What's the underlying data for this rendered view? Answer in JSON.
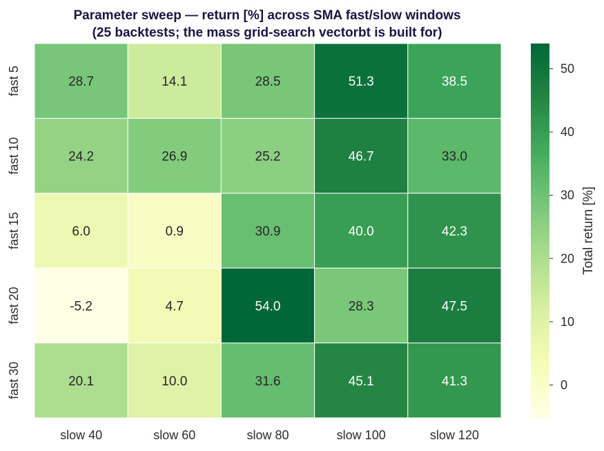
{
  "chart_data": {
    "type": "heatmap",
    "title_lines": [
      "Parameter sweep — return [%] across SMA fast/slow windows",
      "(25 backtests; the mass grid-search vectorbt is built for)"
    ],
    "x_categories": [
      "slow 40",
      "slow 60",
      "slow 80",
      "slow 100",
      "slow 120"
    ],
    "y_categories": [
      "fast 5",
      "fast 10",
      "fast 15",
      "fast 20",
      "fast 30"
    ],
    "values": [
      [
        28.7,
        14.1,
        28.5,
        51.3,
        38.5
      ],
      [
        24.2,
        26.9,
        25.2,
        46.7,
        33.0
      ],
      [
        6.0,
        0.9,
        30.9,
        40.0,
        42.3
      ],
      [
        -5.2,
        4.7,
        54.0,
        28.3,
        47.5
      ],
      [
        20.1,
        10.0,
        31.6,
        45.1,
        41.3
      ]
    ],
    "colormap": "YlGn",
    "vmin": -5.2,
    "vmax": 54.0,
    "colorbar": {
      "label": "Total return [%]",
      "ticks": [
        0,
        10,
        20,
        30,
        40,
        50
      ]
    }
  }
}
